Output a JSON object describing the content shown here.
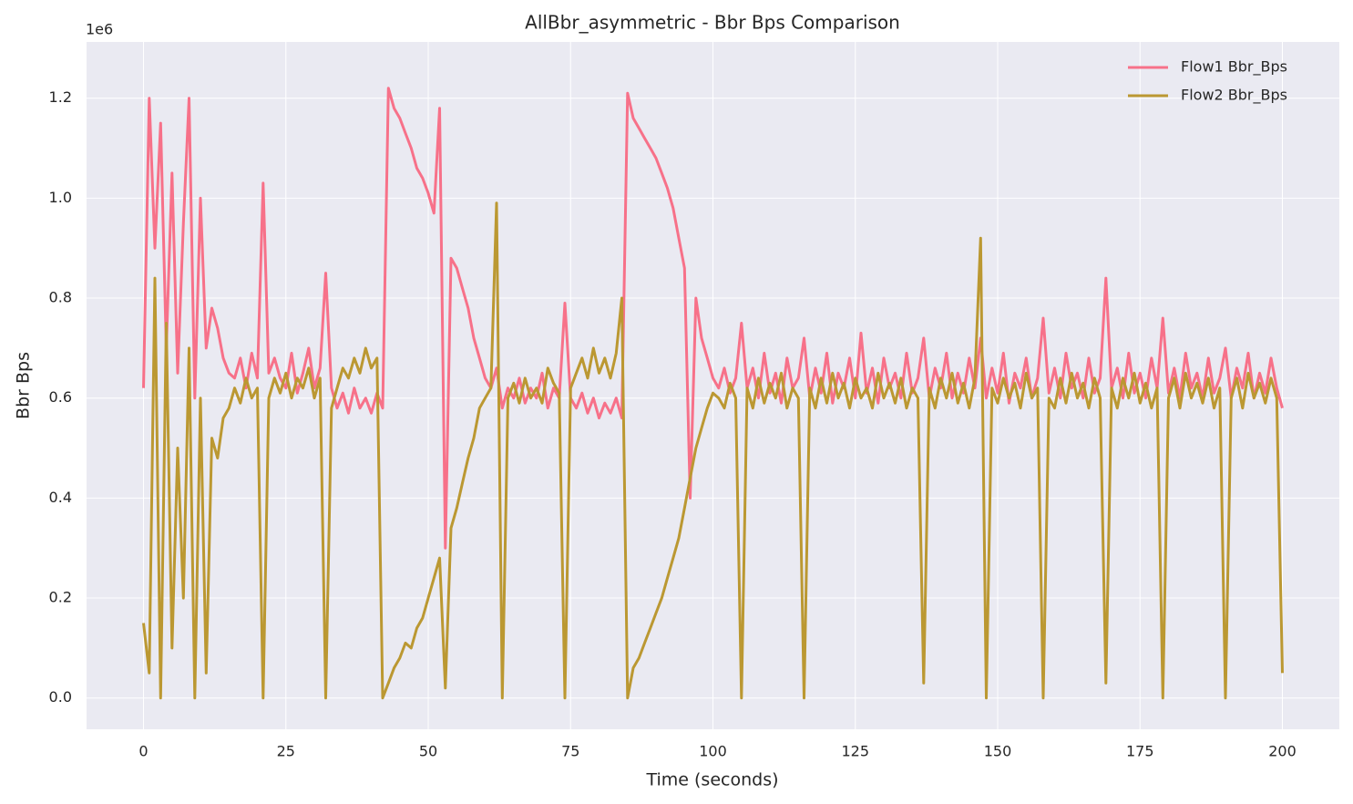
{
  "chart_data": {
    "type": "line",
    "title": "AllBbr_asymmetric - Bbr Bps Comparison",
    "xlabel": "Time (seconds)",
    "ylabel": "Bbr Bps",
    "y_offset_label": "1e6",
    "xlim": [
      -10,
      210
    ],
    "ylim": [
      -62500,
      1312500
    ],
    "xticks": [
      0,
      25,
      50,
      75,
      100,
      125,
      150,
      175,
      200
    ],
    "yticks": [
      {
        "value": 0,
        "label": "0.0"
      },
      {
        "value": 200000,
        "label": "0.2"
      },
      {
        "value": 400000,
        "label": "0.4"
      },
      {
        "value": 600000,
        "label": "0.6"
      },
      {
        "value": 800000,
        "label": "0.8"
      },
      {
        "value": 1000000,
        "label": "1.0"
      },
      {
        "value": 1200000,
        "label": "1.2"
      }
    ],
    "grid": true,
    "legend": "upper right",
    "background": "#eaeaf2",
    "x": [
      0,
      1,
      2,
      3,
      4,
      5,
      6,
      7,
      8,
      9,
      10,
      11,
      12,
      13,
      14,
      15,
      16,
      17,
      18,
      19,
      20,
      21,
      22,
      23,
      24,
      25,
      26,
      27,
      28,
      29,
      30,
      31,
      32,
      33,
      34,
      35,
      36,
      37,
      38,
      39,
      40,
      41,
      42,
      43,
      44,
      45,
      46,
      47,
      48,
      49,
      50,
      51,
      52,
      53,
      54,
      55,
      56,
      57,
      58,
      59,
      60,
      61,
      62,
      63,
      64,
      65,
      66,
      67,
      68,
      69,
      70,
      71,
      72,
      73,
      74,
      75,
      76,
      77,
      78,
      79,
      80,
      81,
      82,
      83,
      84,
      85,
      86,
      87,
      88,
      89,
      90,
      91,
      92,
      93,
      94,
      95,
      96,
      97,
      98,
      99,
      100,
      101,
      102,
      103,
      104,
      105,
      106,
      107,
      108,
      109,
      110,
      111,
      112,
      113,
      114,
      115,
      116,
      117,
      118,
      119,
      120,
      121,
      122,
      123,
      124,
      125,
      126,
      127,
      128,
      129,
      130,
      131,
      132,
      133,
      134,
      135,
      136,
      137,
      138,
      139,
      140,
      141,
      142,
      143,
      144,
      145,
      146,
      147,
      148,
      149,
      150,
      151,
      152,
      153,
      154,
      155,
      156,
      157,
      158,
      159,
      160,
      161,
      162,
      163,
      164,
      165,
      166,
      167,
      168,
      169,
      170,
      171,
      172,
      173,
      174,
      175,
      176,
      177,
      178,
      179,
      180,
      181,
      182,
      183,
      184,
      185,
      186,
      187,
      188,
      189,
      190,
      191,
      192,
      193,
      194,
      195,
      196,
      197,
      198,
      199,
      200
    ],
    "series": [
      {
        "name": "Flow1 Bbr_Bps",
        "color": "#f77189",
        "values": [
          620000,
          1200000,
          900000,
          1150000,
          700000,
          1050000,
          650000,
          950000,
          1200000,
          600000,
          1000000,
          700000,
          780000,
          740000,
          680000,
          650000,
          640000,
          680000,
          620000,
          690000,
          640000,
          1030000,
          650000,
          680000,
          640000,
          620000,
          690000,
          610000,
          650000,
          700000,
          620000,
          660000,
          850000,
          620000,
          580000,
          610000,
          570000,
          620000,
          580000,
          600000,
          570000,
          610000,
          580000,
          1220000,
          1180000,
          1160000,
          1130000,
          1100000,
          1060000,
          1040000,
          1010000,
          970000,
          1180000,
          300000,
          880000,
          860000,
          820000,
          780000,
          720000,
          680000,
          640000,
          620000,
          660000,
          580000,
          620000,
          600000,
          640000,
          590000,
          620000,
          600000,
          650000,
          580000,
          620000,
          600000,
          790000,
          600000,
          580000,
          610000,
          570000,
          600000,
          560000,
          590000,
          570000,
          600000,
          560000,
          1210000,
          1160000,
          1140000,
          1120000,
          1100000,
          1080000,
          1050000,
          1020000,
          980000,
          920000,
          860000,
          400000,
          800000,
          720000,
          680000,
          640000,
          620000,
          660000,
          610000,
          640000,
          750000,
          620000,
          660000,
          600000,
          690000,
          610000,
          650000,
          590000,
          680000,
          620000,
          640000,
          720000,
          600000,
          660000,
          610000,
          690000,
          590000,
          650000,
          620000,
          680000,
          600000,
          730000,
          610000,
          660000,
          590000,
          680000,
          620000,
          650000,
          600000,
          690000,
          610000,
          640000,
          720000,
          600000,
          660000,
          620000,
          690000,
          600000,
          650000,
          610000,
          680000,
          620000,
          720000,
          600000,
          660000,
          610000,
          690000,
          590000,
          650000,
          620000,
          680000,
          600000,
          640000,
          760000,
          610000,
          660000,
          600000,
          690000,
          620000,
          650000,
          600000,
          680000,
          610000,
          640000,
          840000,
          620000,
          660000,
          600000,
          690000,
          610000,
          650000,
          600000,
          680000,
          620000,
          760000,
          610000,
          660000,
          600000,
          690000,
          620000,
          650000,
          600000,
          680000,
          610000,
          640000,
          700000,
          600000,
          660000,
          620000,
          690000,
          600000,
          650000,
          610000,
          680000,
          620000,
          580000
        ]
      },
      {
        "name": "Flow2 Bbr_Bps",
        "color": "#bb9832",
        "values": [
          150000,
          50000,
          840000,
          0,
          750000,
          100000,
          500000,
          200000,
          700000,
          0,
          600000,
          50000,
          520000,
          480000,
          560000,
          580000,
          620000,
          590000,
          640000,
          600000,
          620000,
          0,
          600000,
          640000,
          610000,
          650000,
          600000,
          640000,
          620000,
          660000,
          600000,
          640000,
          0,
          580000,
          620000,
          660000,
          640000,
          680000,
          650000,
          700000,
          660000,
          680000,
          0,
          30000,
          60000,
          80000,
          110000,
          100000,
          140000,
          160000,
          200000,
          240000,
          280000,
          20000,
          340000,
          380000,
          430000,
          480000,
          520000,
          580000,
          600000,
          620000,
          990000,
          0,
          600000,
          630000,
          590000,
          640000,
          600000,
          620000,
          590000,
          660000,
          630000,
          610000,
          0,
          620000,
          650000,
          680000,
          640000,
          700000,
          650000,
          680000,
          640000,
          690000,
          800000,
          0,
          60000,
          80000,
          110000,
          140000,
          170000,
          200000,
          240000,
          280000,
          320000,
          380000,
          440000,
          500000,
          540000,
          580000,
          610000,
          600000,
          580000,
          630000,
          600000,
          0,
          620000,
          580000,
          640000,
          590000,
          630000,
          600000,
          650000,
          580000,
          620000,
          600000,
          0,
          620000,
          580000,
          640000,
          590000,
          650000,
          600000,
          630000,
          580000,
          640000,
          600000,
          620000,
          580000,
          650000,
          600000,
          630000,
          590000,
          640000,
          580000,
          620000,
          600000,
          30000,
          620000,
          580000,
          640000,
          600000,
          650000,
          590000,
          630000,
          580000,
          640000,
          920000,
          0,
          620000,
          590000,
          640000,
          600000,
          630000,
          580000,
          650000,
          600000,
          620000,
          0,
          600000,
          580000,
          640000,
          590000,
          650000,
          600000,
          630000,
          580000,
          640000,
          600000,
          30000,
          620000,
          580000,
          640000,
          600000,
          650000,
          590000,
          630000,
          580000,
          620000,
          0,
          600000,
          640000,
          580000,
          650000,
          600000,
          630000,
          590000,
          640000,
          580000,
          620000,
          0,
          600000,
          640000,
          580000,
          650000,
          600000,
          630000,
          590000,
          640000,
          600000,
          50000
        ]
      }
    ]
  }
}
